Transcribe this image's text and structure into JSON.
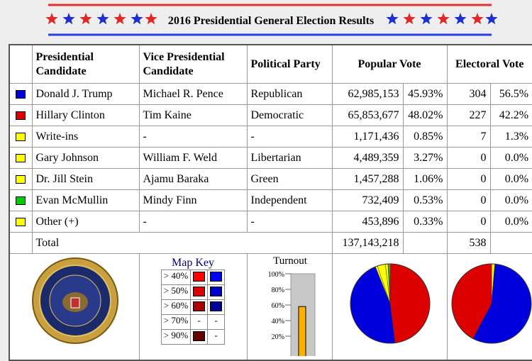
{
  "header": {
    "title": "2016 Presidential General Election Results"
  },
  "table": {
    "columns": [
      "Presidential Candidate",
      "Vice Presidential Candidate",
      "Political Party",
      "Popular Vote",
      "Electoral Vote"
    ],
    "rows": [
      {
        "color": "#0000dd",
        "candidate": "Donald J. Trump",
        "running_mate": "Michael R. Pence",
        "party": "Republican",
        "popular_vote": "62,985,153",
        "popular_pct": "45.93%",
        "electoral_vote": "304",
        "electoral_pct": "56.5%"
      },
      {
        "color": "#dd0000",
        "candidate": "Hillary Clinton",
        "running_mate": "Tim Kaine",
        "party": "Democratic",
        "popular_vote": "65,853,677",
        "popular_pct": "48.02%",
        "electoral_vote": "227",
        "electoral_pct": "42.2%"
      },
      {
        "color": "#ffff00",
        "candidate": "Write-ins",
        "running_mate": "-",
        "party": "-",
        "popular_vote": "1,171,436",
        "popular_pct": "0.85%",
        "electoral_vote": "7",
        "electoral_pct": "1.3%"
      },
      {
        "color": "#ffff00",
        "candidate": "Gary Johnson",
        "running_mate": "William F. Weld",
        "party": "Libertarian",
        "popular_vote": "4,489,359",
        "popular_pct": "3.27%",
        "electoral_vote": "0",
        "electoral_pct": "0.0%"
      },
      {
        "color": "#ffff00",
        "candidate": "Dr. Jill Stein",
        "running_mate": "Ajamu Baraka",
        "party": "Green",
        "popular_vote": "1,457,288",
        "popular_pct": "1.06%",
        "electoral_vote": "0",
        "electoral_pct": "0.0%"
      },
      {
        "color": "#00cc00",
        "candidate": "Evan McMullin",
        "running_mate": "Mindy Finn",
        "party": "Independent",
        "popular_vote": "732,409",
        "popular_pct": "0.53%",
        "electoral_vote": "0",
        "electoral_pct": "0.0%"
      },
      {
        "color": "#ffff00",
        "candidate": "Other (+)",
        "running_mate": "-",
        "party": "-",
        "popular_vote": "453,896",
        "popular_pct": "0.33%",
        "electoral_vote": "0",
        "electoral_pct": "0.0%"
      }
    ],
    "total": {
      "label": "Total",
      "popular_vote": "137,143,218",
      "electoral_vote": "538"
    }
  },
  "map_key": {
    "title": "Map Key",
    "rows": [
      {
        "label": "> 40%",
        "republican": "#ff0000",
        "democratic": "#0000ff"
      },
      {
        "label": "> 50%",
        "republican": "#dd0000",
        "democratic": "#0000cc"
      },
      {
        "label": "> 60%",
        "republican": "#aa0000",
        "democratic": "#000099"
      },
      {
        "label": "> 70%",
        "republican": "-",
        "democratic": "-"
      },
      {
        "label": "> 90%",
        "republican": "#660000",
        "democratic": "-"
      }
    ]
  },
  "turnout": {
    "title": "Turnout",
    "value": 58,
    "ylim": [
      0,
      100
    ],
    "yticks": [
      {
        "value": 100,
        "label": "100%"
      },
      {
        "value": 80,
        "label": "80%"
      },
      {
        "value": 60,
        "label": "60%"
      },
      {
        "value": 40,
        "label": "40%"
      },
      {
        "value": 20,
        "label": "20%"
      }
    ]
  }
}
